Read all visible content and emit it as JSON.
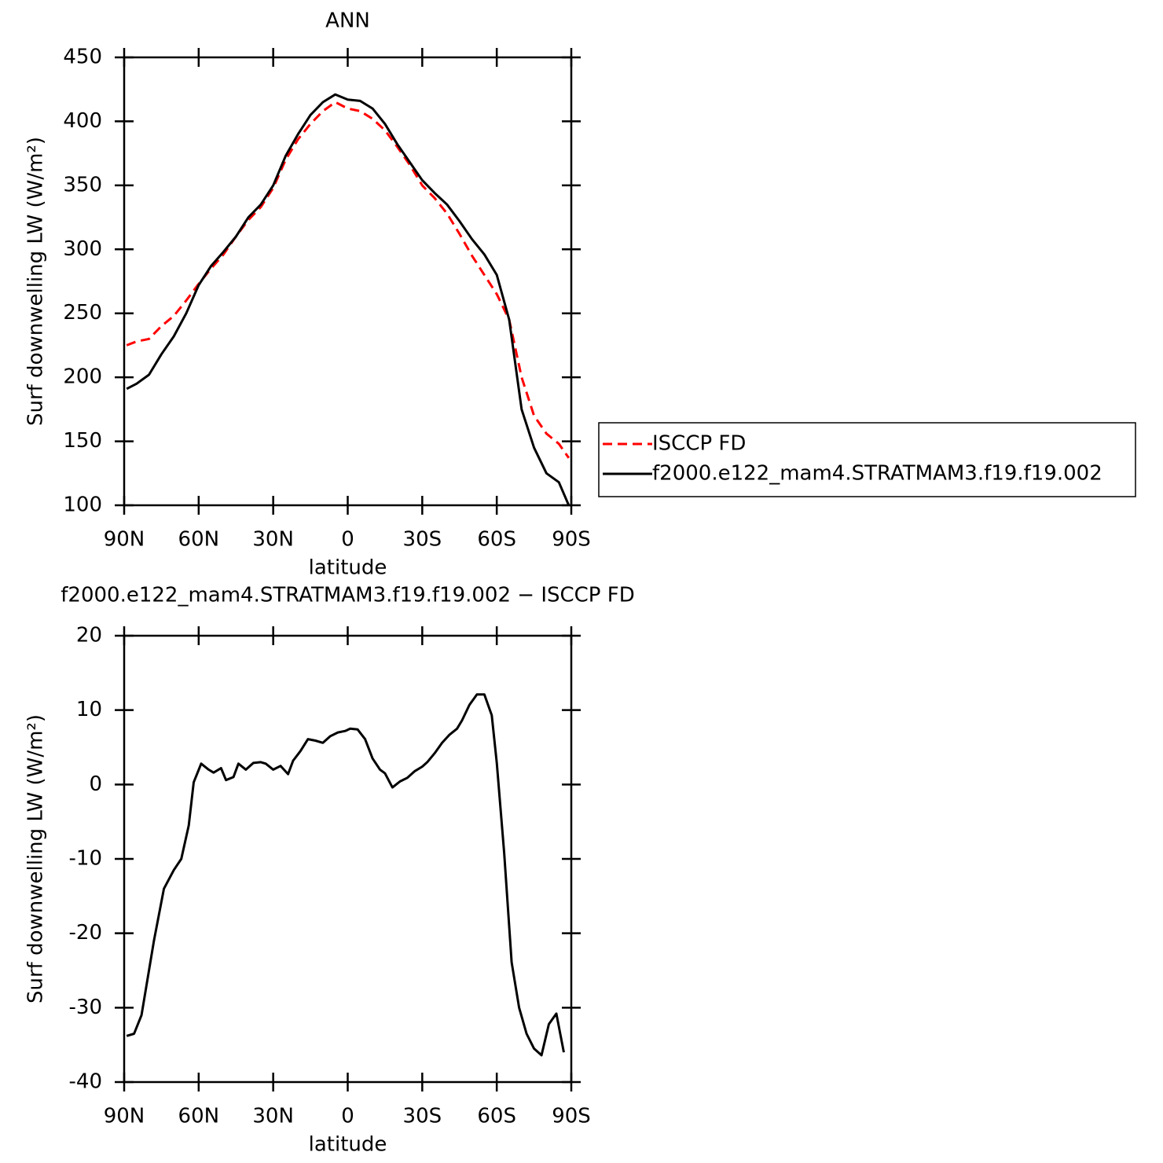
{
  "chart_data": [
    {
      "type": "line",
      "title": "ANN",
      "x": [
        89,
        85,
        80,
        75,
        70,
        65,
        60,
        55,
        50,
        45,
        40,
        35,
        30,
        25,
        20,
        15,
        10,
        5,
        0,
        -5,
        -10,
        -15,
        -20,
        -25,
        -30,
        -35,
        -40,
        -45,
        -50,
        -55,
        -60,
        -65,
        -70,
        -75,
        -80,
        -85,
        -89
      ],
      "series": [
        {
          "name": "ISCCP FD",
          "color": "#ff0000",
          "dashed": true,
          "values": [
            225,
            228,
            230,
            240,
            248,
            260,
            273,
            285,
            296,
            310,
            323,
            333,
            348,
            370,
            386,
            398,
            408,
            415,
            410,
            408,
            402,
            393,
            380,
            366,
            350,
            340,
            328,
            312,
            295,
            280,
            265,
            245,
            200,
            170,
            156,
            148,
            137
          ]
        },
        {
          "name": "f2000.e122_mam4.STRATMAM3.f19.f19.002",
          "color": "#000000",
          "dashed": false,
          "values": [
            191,
            195,
            202,
            218,
            232,
            250,
            272,
            287,
            298,
            310,
            325,
            335,
            350,
            373,
            390,
            405,
            415,
            421,
            417,
            416,
            410,
            398,
            382,
            368,
            354,
            344,
            335,
            322,
            308,
            296,
            280,
            245,
            175,
            145,
            125,
            118,
            100
          ]
        }
      ],
      "xlim": [
        90,
        -90
      ],
      "xticks": [
        {
          "value": 90,
          "label": "90N"
        },
        {
          "value": 60,
          "label": "60N"
        },
        {
          "value": 30,
          "label": "30N"
        },
        0,
        {
          "value": -30,
          "label": "30S"
        },
        {
          "value": -60,
          "label": "60S"
        },
        {
          "value": -90,
          "label": "90S"
        }
      ],
      "ylim": [
        100,
        450
      ],
      "yticks": [
        100,
        150,
        200,
        250,
        300,
        350,
        400,
        450
      ],
      "xlabel": "latitude",
      "ylabel": "Surf downwelling LW (W/m²)",
      "legend": "right"
    },
    {
      "type": "line",
      "title": "f2000.e122_mam4.STRATMAM3.f19.f19.002 − ISCCP FD",
      "x": [
        89,
        86,
        83,
        78,
        74,
        70,
        67,
        64,
        62,
        59,
        56,
        54,
        51,
        49,
        46,
        44,
        41,
        38,
        35,
        33,
        30,
        27,
        24,
        22,
        19,
        16,
        13,
        10,
        7,
        4,
        1,
        -1,
        -4,
        -7,
        -10,
        -13,
        -15,
        -18,
        -21,
        -24,
        -27,
        -30,
        -32,
        -35,
        -38,
        -41,
        -44,
        -46,
        -49,
        -52,
        -55,
        -58,
        -60,
        -63,
        -66,
        -69,
        -72,
        -75,
        -78,
        -81,
        -84,
        -87
      ],
      "values": [
        -33.8,
        -33.5,
        -31,
        -21,
        -14,
        -11.5,
        -10,
        -5.5,
        0.3,
        2.8,
        2,
        1.6,
        2.2,
        0.6,
        1,
        2.8,
        2,
        2.9,
        3,
        2.8,
        2,
        2.5,
        1.4,
        3.2,
        4.5,
        6.1,
        5.9,
        5.6,
        6.5,
        7,
        7.2,
        7.5,
        7.4,
        6.1,
        3.5,
        2,
        1.5,
        -0.4,
        0.4,
        0.9,
        1.8,
        2.4,
        3,
        4.2,
        5.6,
        6.7,
        7.5,
        8.6,
        10.7,
        12.1,
        12.1,
        9.3,
        2.9,
        -9.2,
        -23.9,
        -30,
        -33.5,
        -35.5,
        -36.4,
        -32.2,
        -30.8,
        -36
      ],
      "color": "#000000",
      "xlim": [
        90,
        -90
      ],
      "xticks": [
        {
          "value": 90,
          "label": "90N"
        },
        {
          "value": 60,
          "label": "60N"
        },
        {
          "value": 30,
          "label": "30N"
        },
        0,
        {
          "value": -30,
          "label": "30S"
        },
        {
          "value": -60,
          "label": "60S"
        },
        {
          "value": -90,
          "label": "90S"
        }
      ],
      "ylim": [
        -40,
        20
      ],
      "yticks": [
        -40,
        -30,
        -20,
        -10,
        0,
        10,
        20
      ],
      "xlabel": "latitude",
      "ylabel": "Surf downwelling LW (W/m²)"
    }
  ]
}
